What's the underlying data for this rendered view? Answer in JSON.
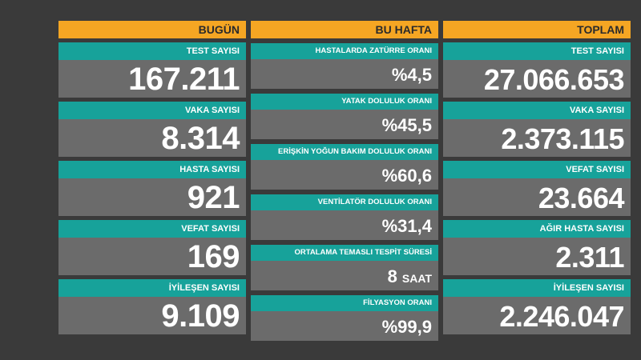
{
  "today": {
    "header": "BUGÜN",
    "stats": [
      {
        "label": "TEST SAYISI",
        "value": "167.211"
      },
      {
        "label": "VAKA SAYISI",
        "value": "8.314"
      },
      {
        "label": "HASTA SAYISI",
        "value": "921"
      },
      {
        "label": "VEFAT SAYISI",
        "value": "169"
      },
      {
        "label": "İYİLEŞEN SAYISI",
        "value": "9.109"
      }
    ]
  },
  "week": {
    "header": "BU HAFTA",
    "stats": [
      {
        "label": "HASTALARDA ZATÜRRE ORANI",
        "value": "%4,5"
      },
      {
        "label": "YATAK DOLULUK ORANI",
        "value": "%45,5"
      },
      {
        "label": "ERİŞKİN YOĞUN BAKIM DOLULUK ORANI",
        "value": "%60,6"
      },
      {
        "label": "VENTİLATÖR DOLULUK ORANI",
        "value": "%31,4"
      },
      {
        "label": "ORTALAMA TEMASLI TESPİT SÜRESİ",
        "value": "8",
        "unit": "SAAT"
      },
      {
        "label": "FİLYASYON ORANI",
        "value": "%99,9"
      }
    ]
  },
  "total": {
    "header": "TOPLAM",
    "stats": [
      {
        "label": "TEST SAYISI",
        "value": "27.066.653"
      },
      {
        "label": "VAKA SAYISI",
        "value": "2.373.115"
      },
      {
        "label": "VEFAT SAYISI",
        "value": "23.664"
      },
      {
        "label": "AĞIR HASTA SAYISI",
        "value": "2.311"
      },
      {
        "label": "İYİLEŞEN SAYISI",
        "value": "2.246.047"
      }
    ]
  },
  "colors": {
    "header": "#f5a623",
    "label": "#17a29a",
    "value_bg": "#6b6b6b",
    "background": "#3a3a3a"
  }
}
